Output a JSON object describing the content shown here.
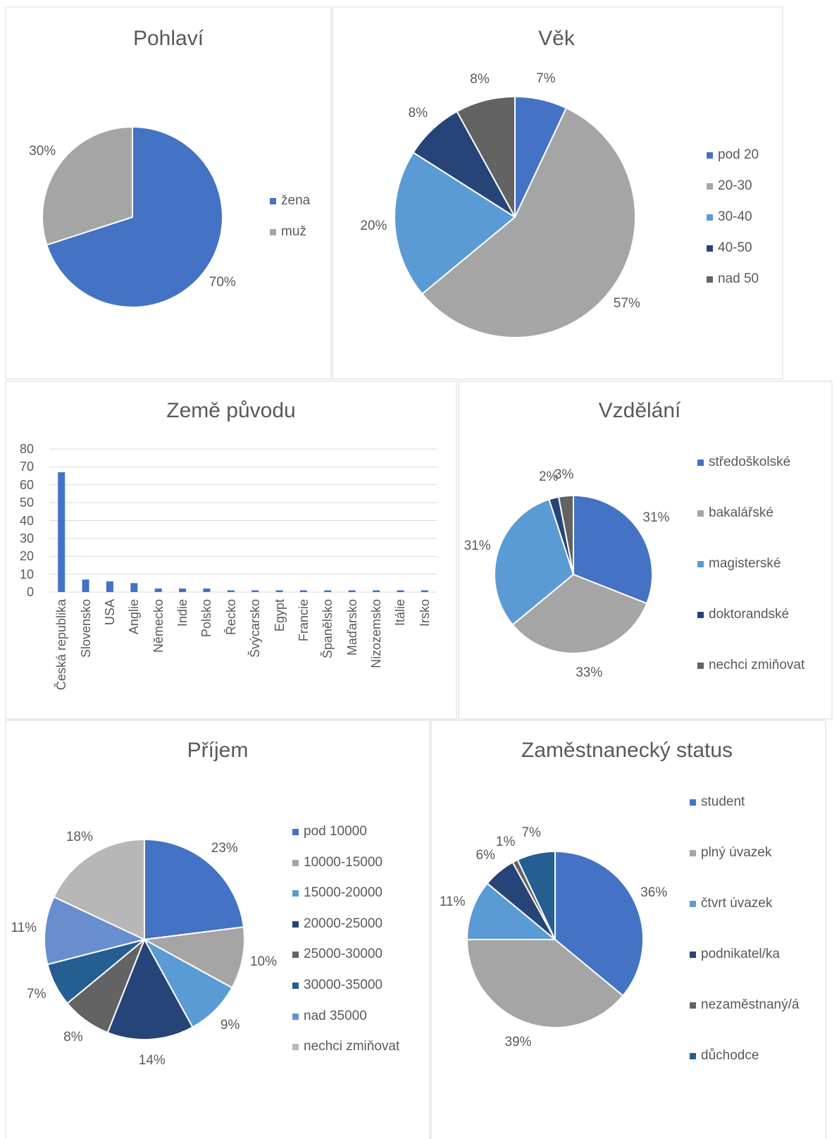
{
  "chart_data": [
    {
      "type": "pie",
      "title": "Pohlaví",
      "categories": [
        "žena",
        "muž"
      ],
      "values": [
        70,
        30
      ],
      "value_labels": [
        "70%",
        "30%"
      ],
      "colors": [
        "#4472c4",
        "#a5a5a5"
      ]
    },
    {
      "type": "pie",
      "title": "Věk",
      "categories": [
        "pod 20",
        "20-30",
        "30-40",
        "40-50",
        "nad 50"
      ],
      "values": [
        7,
        57,
        20,
        8,
        8
      ],
      "value_labels": [
        "7%",
        "57%",
        "20%",
        "8%",
        "8%"
      ],
      "colors": [
        "#4472c4",
        "#a5a5a5",
        "#5b9bd5",
        "#264478",
        "#636363"
      ]
    },
    {
      "type": "bar",
      "title": "Země původu",
      "categories": [
        "Česká republika",
        "Slovensko",
        "USA",
        "Anglie",
        "Německo",
        "Indie",
        "Polsko",
        "Řecko",
        "Švýcarsko",
        "Egypt",
        "Francie",
        "Španělsko",
        "Maďarsko",
        "Nizozemsko",
        "Itálie",
        "Irsko"
      ],
      "values": [
        67,
        7,
        6,
        5,
        2,
        2,
        2,
        1,
        1,
        1,
        1,
        1,
        1,
        1,
        1,
        1
      ],
      "color": "#4472c4",
      "ylim": [
        0,
        80
      ],
      "yticks": [
        0,
        10,
        20,
        30,
        40,
        50,
        60,
        70,
        80
      ],
      "grid": true
    },
    {
      "type": "pie",
      "title": "Vzdělání",
      "categories": [
        "středoškolské",
        "bakalářské",
        "magisterské",
        "doktorandské",
        "nechci zmiňovat"
      ],
      "values": [
        31,
        33,
        31,
        2,
        3
      ],
      "value_labels": [
        "31%",
        "33%",
        "31%",
        "2%",
        "3%"
      ],
      "colors": [
        "#4472c4",
        "#a5a5a5",
        "#5b9bd5",
        "#264478",
        "#636363"
      ]
    },
    {
      "type": "pie",
      "title": "Příjem",
      "categories": [
        "pod 10000",
        "10000-15000",
        "15000-20000",
        "20000-25000",
        "25000-30000",
        "30000-35000",
        "nad 35000",
        "nechci zmiňovat"
      ],
      "values": [
        23,
        10,
        9,
        14,
        8,
        7,
        11,
        18
      ],
      "value_labels": [
        "23%",
        "10%",
        "9%",
        "14%",
        "8%",
        "7%",
        "11%",
        "18%"
      ],
      "colors": [
        "#4472c4",
        "#a5a5a5",
        "#5b9bd5",
        "#264478",
        "#636363",
        "#255e91",
        "#698ed0",
        "#b7b7b7"
      ]
    },
    {
      "type": "pie",
      "title": "Zaměstnanecký status",
      "categories": [
        "student",
        "plný úvazek",
        "čtvrt úvazek",
        "podnikatel/ka",
        "nezaměstnaný/á",
        "důchodce"
      ],
      "values": [
        36,
        39,
        11,
        6,
        1,
        7
      ],
      "value_labels": [
        "36%",
        "39%",
        "11%",
        "6%",
        "1%",
        "7%"
      ],
      "colors": [
        "#4472c4",
        "#a5a5a5",
        "#5b9bd5",
        "#264478",
        "#636363",
        "#255e91"
      ]
    }
  ]
}
